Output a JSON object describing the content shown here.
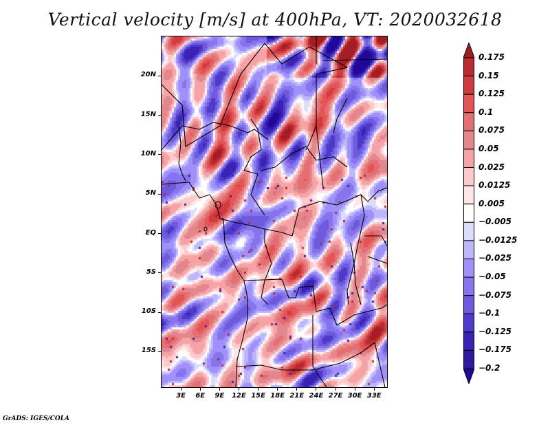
{
  "title": "Vertical velocity [m/s] at 400hPa, VT: 2020032618",
  "credit": "GrADS: IGES/COLA",
  "map": {
    "variable": "Vertical velocity",
    "units": "m/s",
    "level": "400hPa",
    "valid_time": "2020032618",
    "lon_range": [
      0,
      35
    ],
    "lat_range": [
      -19.5,
      25
    ],
    "lat_ticks": [
      {
        "label": "20N",
        "value": 20
      },
      {
        "label": "15N",
        "value": 15
      },
      {
        "label": "10N",
        "value": 10
      },
      {
        "label": "5N",
        "value": 5
      },
      {
        "label": "EQ",
        "value": 0
      },
      {
        "label": "5S",
        "value": -5
      },
      {
        "label": "10S",
        "value": -10
      },
      {
        "label": "15S",
        "value": -15
      }
    ],
    "lon_ticks": [
      {
        "label": "3E",
        "value": 3
      },
      {
        "label": "6E",
        "value": 6
      },
      {
        "label": "9E",
        "value": 9
      },
      {
        "label": "12E",
        "value": 12
      },
      {
        "label": "15E",
        "value": 15
      },
      {
        "label": "18E",
        "value": 18
      },
      {
        "label": "21E",
        "value": 21
      },
      {
        "label": "24E",
        "value": 24
      },
      {
        "label": "27E",
        "value": 27
      },
      {
        "label": "30E",
        "value": 30
      },
      {
        "label": "33E",
        "value": 33
      }
    ]
  },
  "colorbar": {
    "labels": [
      "0.175",
      "0.15",
      "0.125",
      "0.1",
      "0.075",
      "0.05",
      "0.025",
      "0.0125",
      "0.005",
      "−0.005",
      "−0.0125",
      "−0.025",
      "−0.05",
      "−0.075",
      "−0.1",
      "−0.125",
      "−0.175",
      "−0.2"
    ],
    "levels": [
      0.175,
      0.15,
      0.125,
      0.1,
      0.075,
      0.05,
      0.025,
      0.0125,
      0.005,
      -0.005,
      -0.0125,
      -0.025,
      -0.05,
      -0.075,
      -0.1,
      -0.125,
      -0.175,
      -0.2
    ],
    "colors_top_to_bottom": [
      "#a31d24",
      "#b72a2e",
      "#cf3c40",
      "#e55355",
      "#e56e71",
      "#e2878b",
      "#f6a3a6",
      "#fdc9cb",
      "#fee5e6",
      "#ffffff",
      "#dcdcfd",
      "#bdb6fc",
      "#9f90fb",
      "#8574ec",
      "#6e5adc",
      "#4c3acb",
      "#3b22b6",
      "#2e1aa1",
      "#22089a"
    ],
    "extend": "both"
  }
}
